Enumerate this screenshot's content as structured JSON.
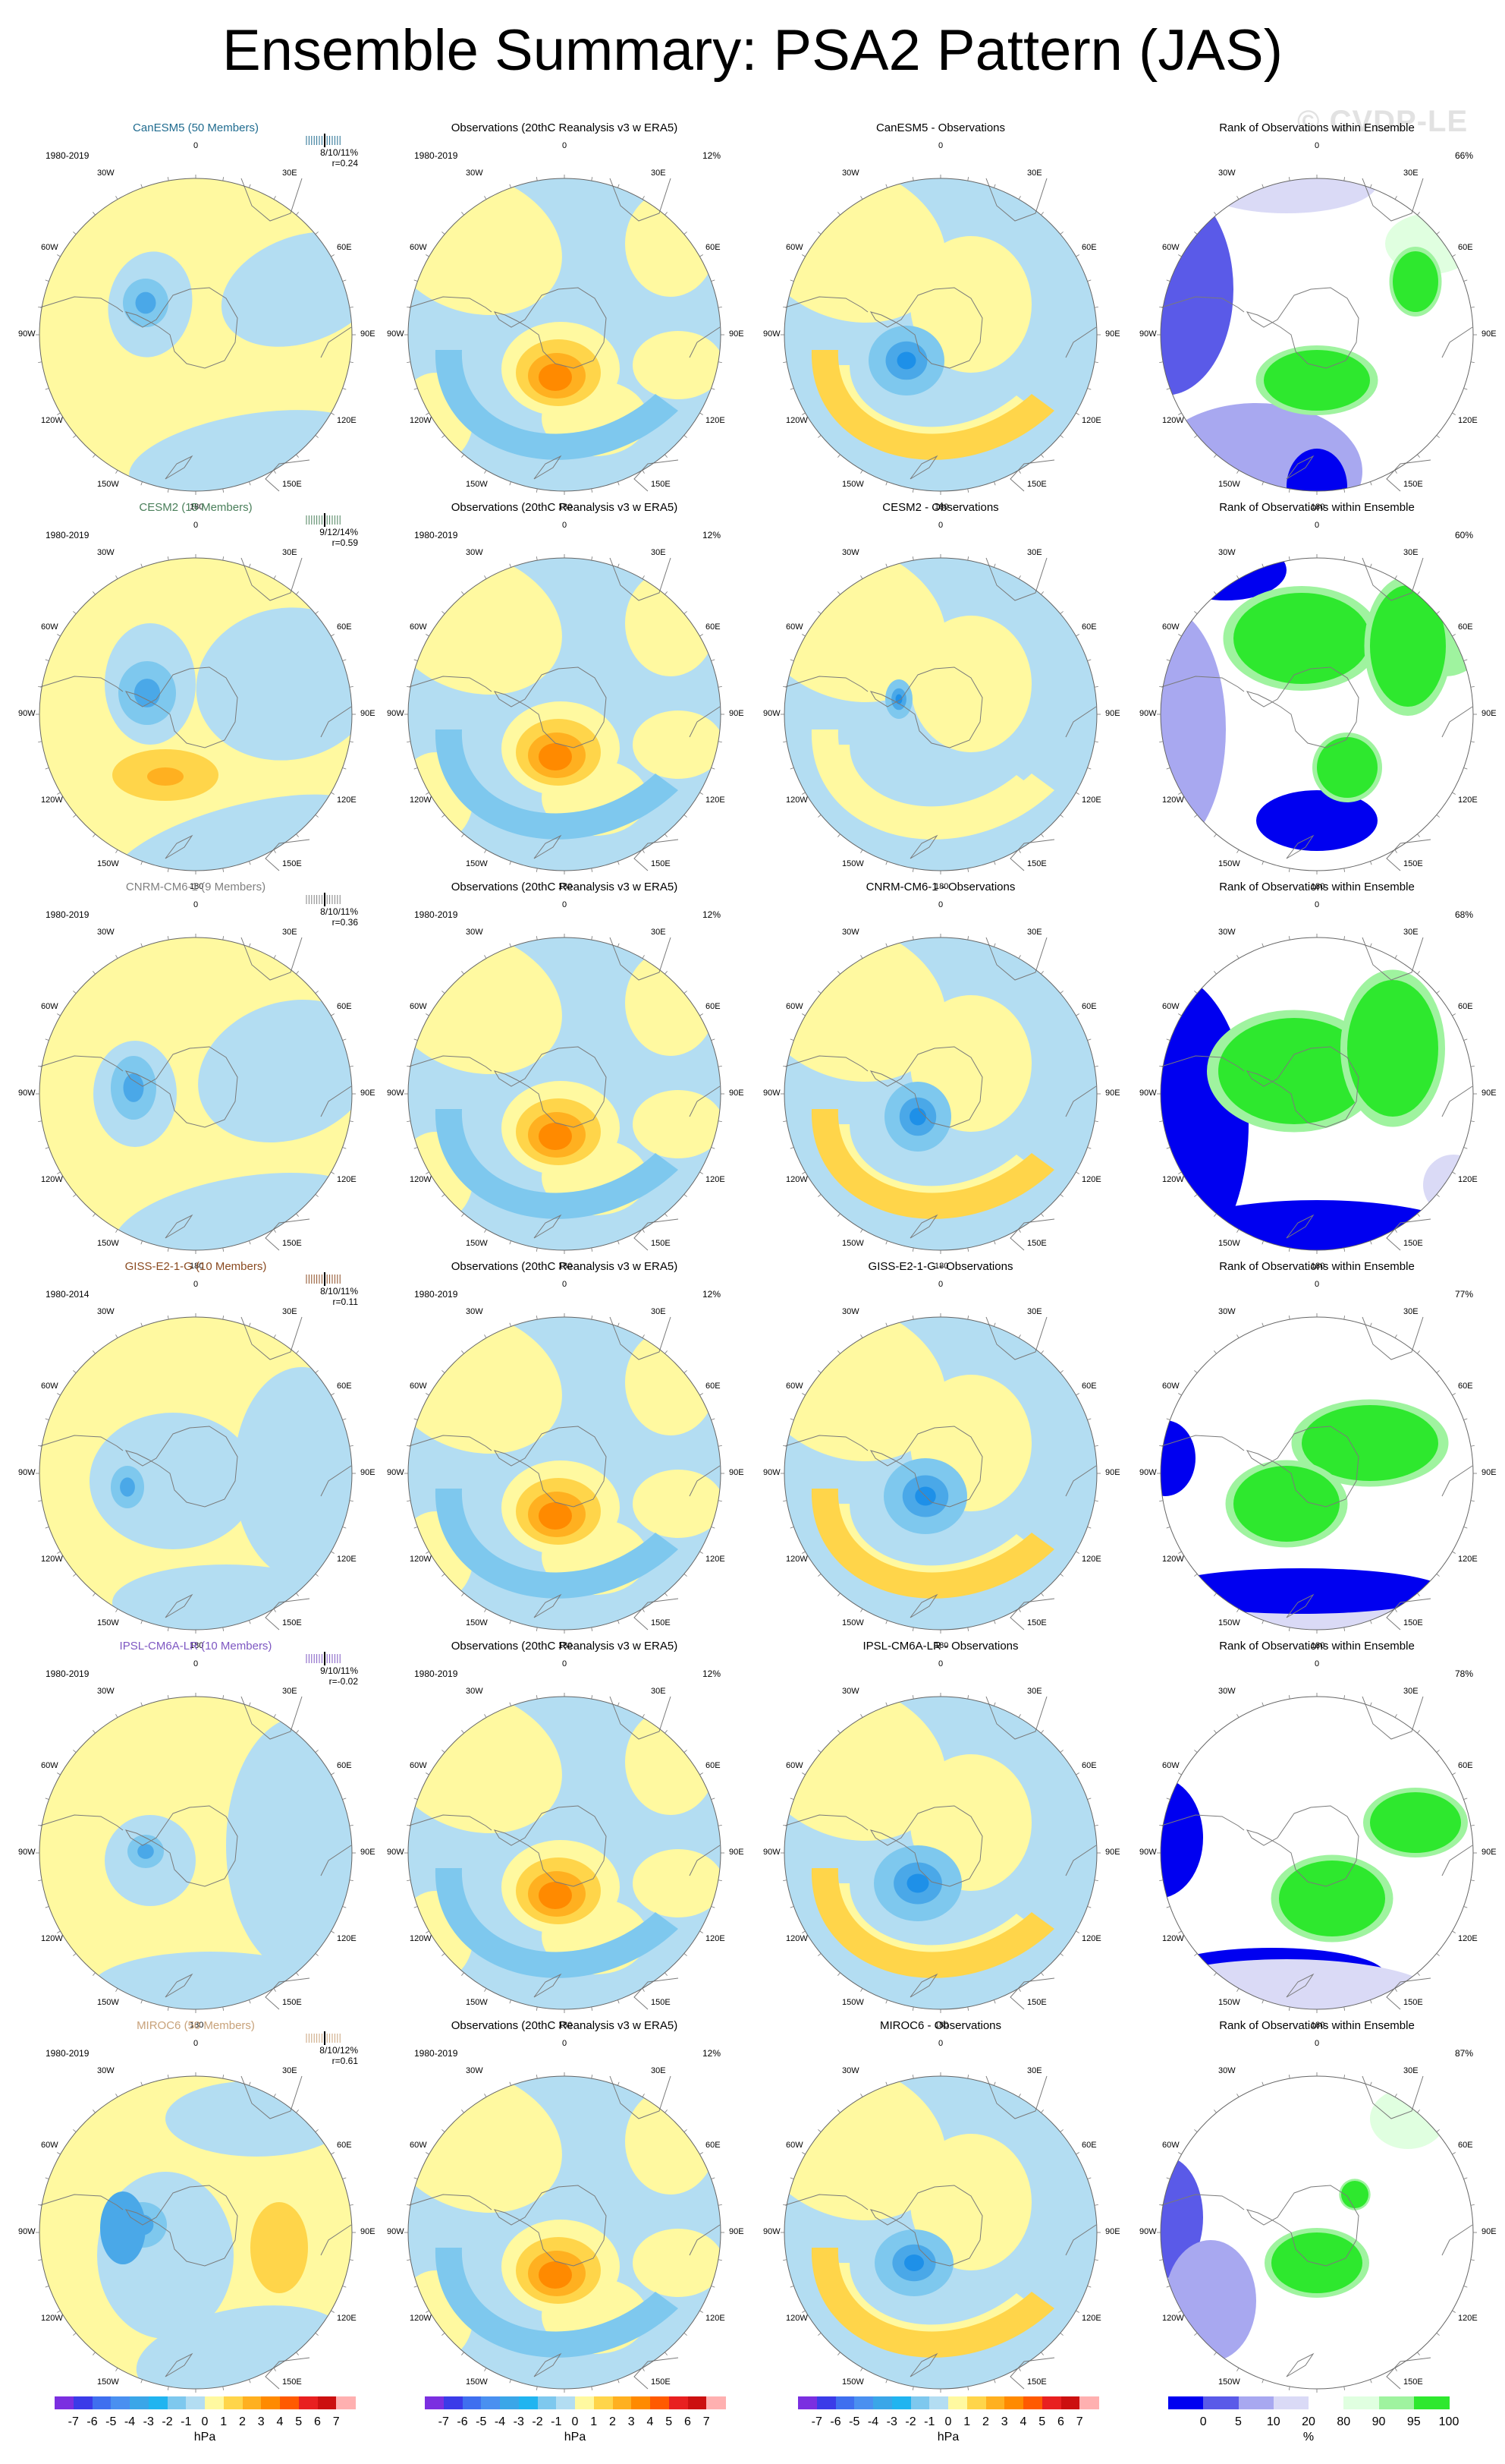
{
  "title": "Ensemble Summary: PSA2 Pattern (JAS)",
  "watermark": "© CVDP-LE",
  "lon_labels": {
    "l0": "0",
    "l30w": "30W",
    "l30e": "30E",
    "l60w": "60W",
    "l60e": "60E",
    "l90w": "90W",
    "l90e": "90E",
    "l120w": "120W",
    "l120e": "120E",
    "l150w": "150W",
    "l150e": "150E",
    "l180": "180"
  },
  "colors": {
    "land": "#b2b2b2",
    "model_title_colors": [
      "#1f6b8f",
      "#4a7f5a",
      "#808080",
      "#8a4a20",
      "#7e57c2",
      "#c8a27a"
    ]
  },
  "rows": [
    {
      "model": "CanESM5 (50 Members)",
      "period": "1980-2019",
      "stats_top": "8/10/11%",
      "stats_r": "r=0.24",
      "obs_title": "Observations (20thC Reanalysis v3 w ERA5)",
      "obs_period": "1980-2019",
      "obs_pct": "12%",
      "diff_title": "CanESM5 - Observations",
      "rank_title": "Rank of Observations within Ensemble",
      "rank_pct": "66%"
    },
    {
      "model": "CESM2 (15 Members)",
      "period": "1980-2019",
      "stats_top": "9/12/14%",
      "stats_r": "r=0.59",
      "obs_title": "Observations (20thC Reanalysis v3 w ERA5)",
      "obs_period": "1980-2019",
      "obs_pct": "12%",
      "diff_title": "CESM2 - Observations",
      "rank_title": "Rank of Observations within Ensemble",
      "rank_pct": "60%"
    },
    {
      "model": "CNRM-CM6-1 (9 Members)",
      "period": "1980-2019",
      "stats_top": "8/10/11%",
      "stats_r": "r=0.36",
      "obs_title": "Observations (20thC Reanalysis v3 w ERA5)",
      "obs_period": "1980-2019",
      "obs_pct": "12%",
      "diff_title": "CNRM-CM6-1 - Observations",
      "rank_title": "Rank of Observations within Ensemble",
      "rank_pct": "68%"
    },
    {
      "model": "GISS-E2-1-G (10 Members)",
      "period": "1980-2014",
      "stats_top": "8/10/11%",
      "stats_r": "r=0.11",
      "obs_title": "Observations (20thC Reanalysis v3 w ERA5)",
      "obs_period": "1980-2019",
      "obs_pct": "12%",
      "diff_title": "GISS-E2-1-G - Observations",
      "rank_title": "Rank of Observations within Ensemble",
      "rank_pct": "77%"
    },
    {
      "model": "IPSL-CM6A-LR (10 Members)",
      "period": "1980-2019",
      "stats_top": "9/10/11%",
      "stats_r": "r=-0.02",
      "obs_title": "Observations (20thC Reanalysis v3 w ERA5)",
      "obs_period": "1980-2019",
      "obs_pct": "12%",
      "diff_title": "IPSL-CM6A-LR - Observations",
      "rank_title": "Rank of Observations within Ensemble",
      "rank_pct": "78%"
    },
    {
      "model": "MIROC6 (50 Members)",
      "period": "1980-2019",
      "stats_top": "8/10/12%",
      "stats_r": "r=0.61",
      "obs_title": "Observations (20thC Reanalysis v3 w ERA5)",
      "obs_period": "1980-2019",
      "obs_pct": "12%",
      "diff_title": "MIROC6 - Observations",
      "rank_title": "Rank of Observations within Ensemble",
      "rank_pct": "87%"
    }
  ],
  "colorbar_hpa": {
    "unit": "hPa",
    "ticks": [
      "-7",
      "-6",
      "-5",
      "-4",
      "-3",
      "-2",
      "-1",
      "0",
      "1",
      "2",
      "3",
      "4",
      "5",
      "6",
      "7"
    ],
    "colors": [
      "#7b2fe0",
      "#3b3be8",
      "#3f6fef",
      "#4a90f0",
      "#3aa6e8",
      "#21b4f0",
      "#7ec8ee",
      "#b3ddf2",
      "#fff9a0",
      "#ffd54a",
      "#ffb020",
      "#ff8a00",
      "#ff5a00",
      "#e82020",
      "#cc1010",
      "#ffb0b0"
    ]
  },
  "colorbar_pct": {
    "unit": "%",
    "ticks": [
      "0",
      "5",
      "10",
      "20",
      "80",
      "90",
      "95",
      "100"
    ],
    "colors": [
      "#0000f0",
      "#5a5ae8",
      "#a8a8f0",
      "#dadaf6",
      "#ffffff",
      "#e0ffe0",
      "#9ff39f",
      "#2ee82e"
    ]
  }
}
